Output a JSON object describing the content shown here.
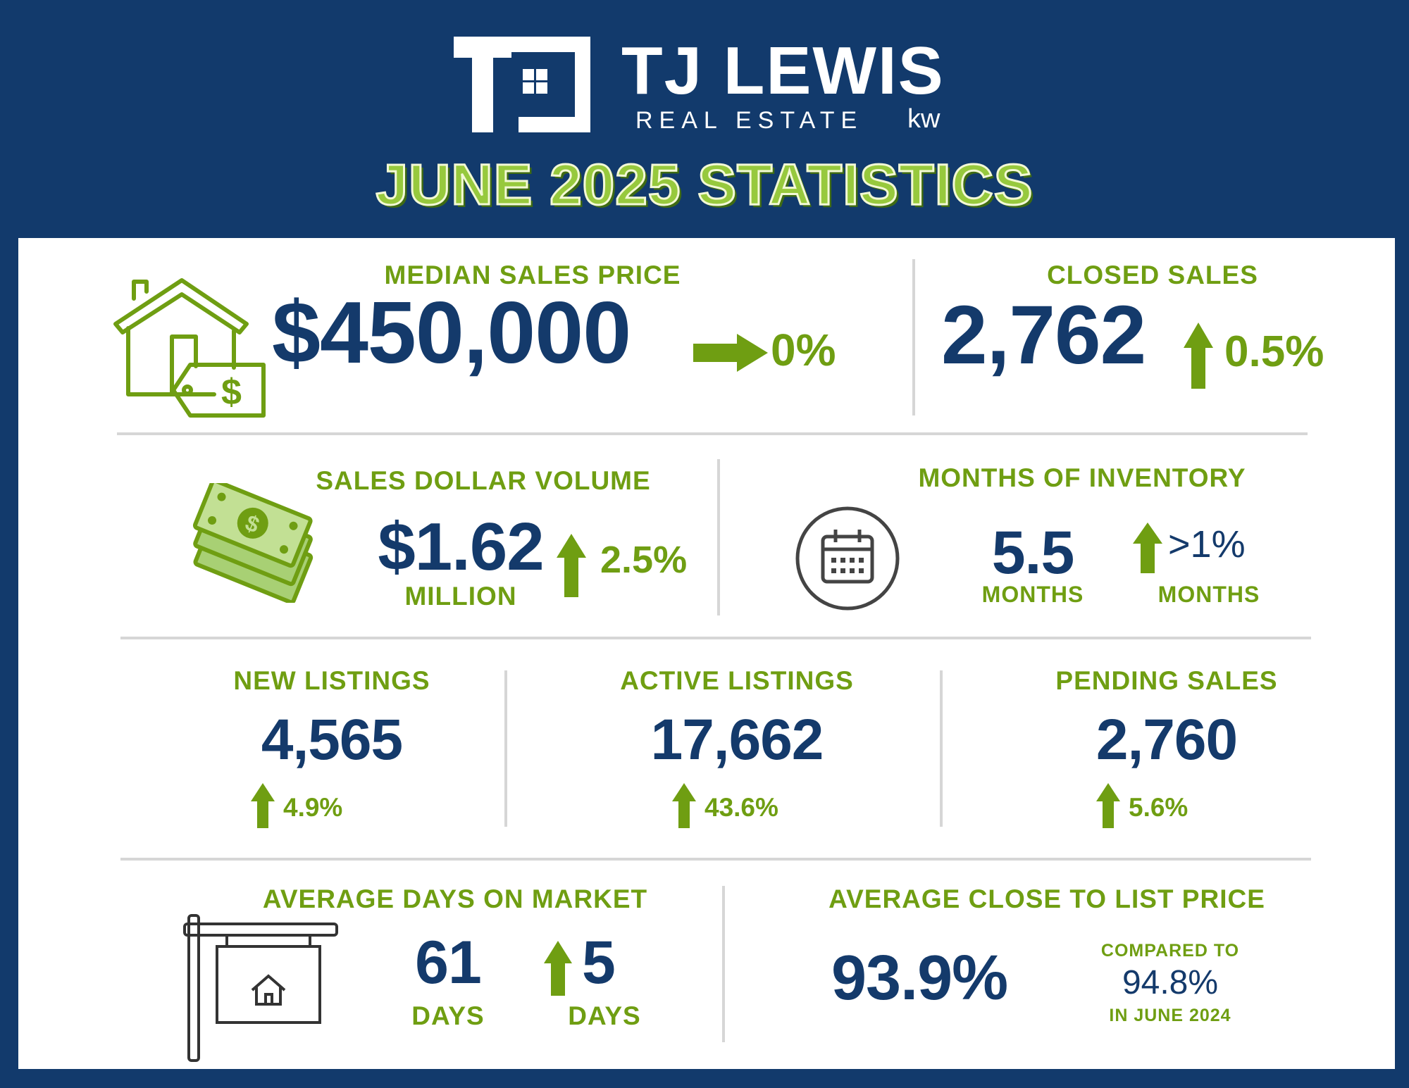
{
  "brand": {
    "name": "TJ LEWIS",
    "sub": "REAL ESTATE",
    "kw": "kw",
    "navy": "#123a6c",
    "green": "#6f9e12"
  },
  "headline": "JUNE 2025 STATISTICS",
  "median_sales_price": {
    "label": "MEDIAN SALES PRICE",
    "value": "$450,000",
    "change": "0%",
    "direction": "flat"
  },
  "closed_sales": {
    "label": "CLOSED SALES",
    "value": "2,762",
    "change": "0.5%",
    "direction": "up"
  },
  "sales_dollar_volume": {
    "label": "SALES DOLLAR VOLUME",
    "value": "$1.62",
    "unit": "MILLION",
    "change": "2.5%",
    "direction": "up"
  },
  "months_of_inventory": {
    "label": "MONTHS OF INVENTORY",
    "value": "5.5",
    "unit": "MONTHS",
    "change": ">1%",
    "change_unit": "MONTHS",
    "direction": "up"
  },
  "new_listings": {
    "label": "NEW LISTINGS",
    "value": "4,565",
    "change": "4.9%",
    "direction": "up"
  },
  "active_listings": {
    "label": "ACTIVE LISTINGS",
    "value": "17,662",
    "change": "43.6%",
    "direction": "up"
  },
  "pending_sales": {
    "label": "PENDING SALES",
    "value": "2,760",
    "change": "5.6%",
    "direction": "up"
  },
  "average_days_on_market": {
    "label": "AVERAGE DAYS ON MARKET",
    "value": "61",
    "unit": "DAYS",
    "change": "5",
    "change_unit": "DAYS",
    "direction": "up"
  },
  "average_close_to_list": {
    "label": "AVERAGE CLOSE TO LIST PRICE",
    "value": "93.9%",
    "compared_label": "COMPARED TO",
    "compared_value": "94.8%",
    "compared_period": "IN JUNE 2024"
  }
}
